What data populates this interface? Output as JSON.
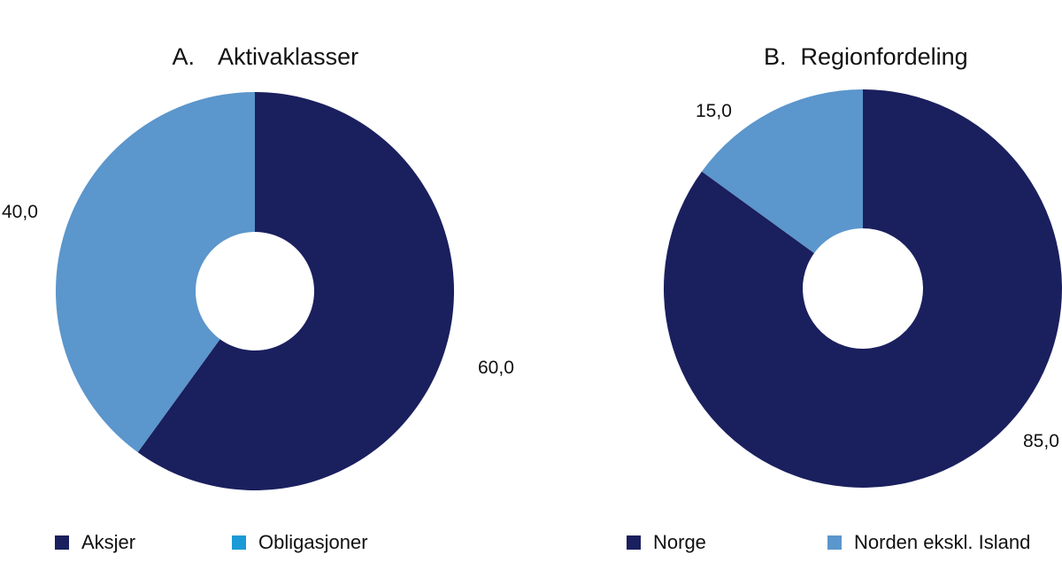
{
  "colors": {
    "dark_navy": "#1a1f5e",
    "light_blue": "#5b96cc",
    "bright_blue": "#1a9ad6"
  },
  "chart_data": [
    {
      "type": "pie",
      "variant": "donut",
      "title": "Aktivaklasser",
      "panel_letter": "A.",
      "categories": [
        "Aksjer",
        "Obligasjoner"
      ],
      "values": [
        60.0,
        40.0
      ],
      "value_labels": [
        "60,0",
        "40,0"
      ],
      "slice_colors": [
        "#1a1f5e",
        "#5b96cc"
      ],
      "legend": [
        {
          "label": "Aksjer",
          "color": "#1a1f5e"
        },
        {
          "label": "Obligasjoner",
          "color": "#1a9ad6"
        }
      ],
      "legend_position": "bottom"
    },
    {
      "type": "pie",
      "variant": "donut",
      "title": "Regionfordeling",
      "panel_letter": "B.",
      "categories": [
        "Norge",
        "Norden ekskl. Island"
      ],
      "values": [
        85.0,
        15.0
      ],
      "value_labels": [
        "85,0",
        "15,0"
      ],
      "slice_colors": [
        "#1a1f5e",
        "#5b96cc"
      ],
      "legend": [
        {
          "label": "Norge",
          "color": "#1a1f5e"
        },
        {
          "label": "Norden ekskl. Island",
          "color": "#5b96cc"
        }
      ],
      "legend_position": "bottom"
    }
  ]
}
